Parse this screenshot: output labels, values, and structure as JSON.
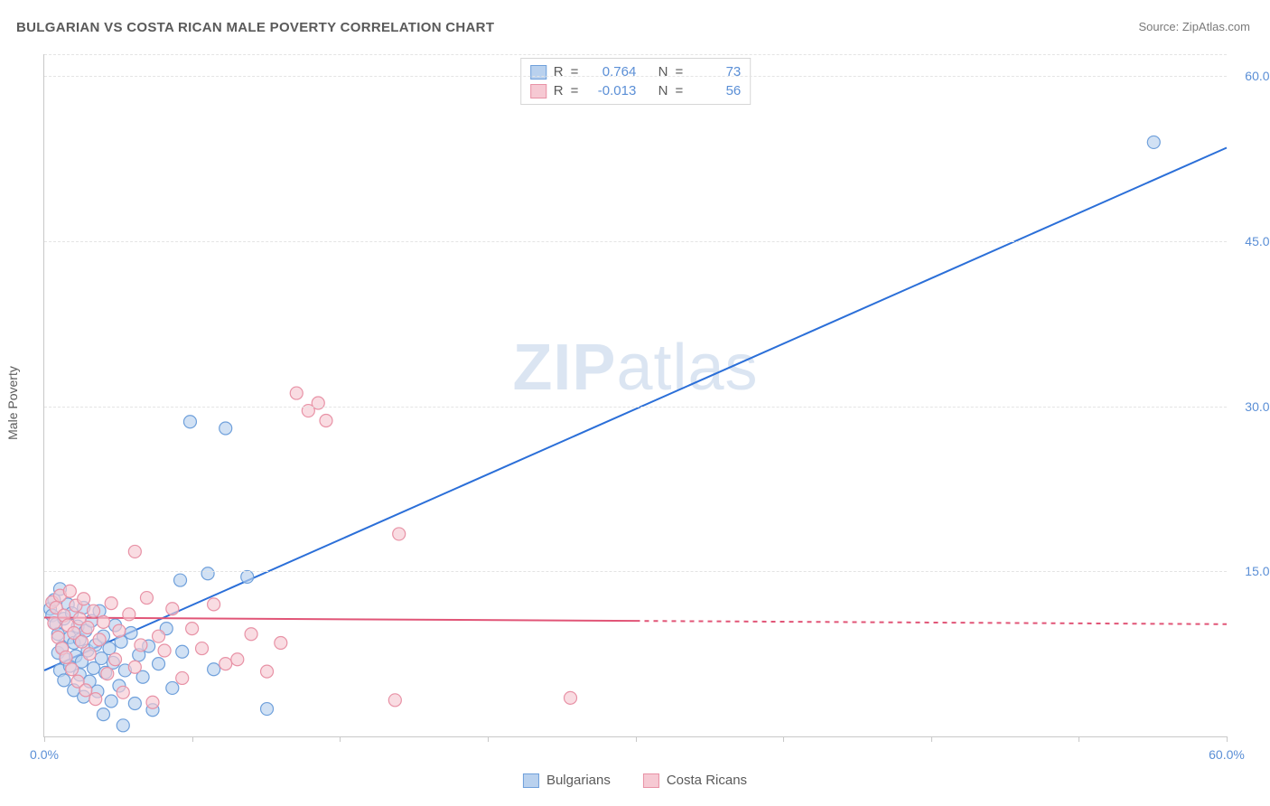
{
  "title": "BULGARIAN VS COSTA RICAN MALE POVERTY CORRELATION CHART",
  "source_label": "Source: ",
  "source_name": "ZipAtlas.com",
  "y_axis_title": "Male Poverty",
  "watermark_bold": "ZIP",
  "watermark_light": "atlas",
  "chart": {
    "type": "scatter",
    "xlim": [
      0,
      60
    ],
    "ylim": [
      0,
      62
    ],
    "x_ticks": [
      0,
      7.5,
      15,
      22.5,
      30,
      37.5,
      45,
      52.5,
      60
    ],
    "x_tick_labels": {
      "0": "0.0%",
      "60": "60.0%"
    },
    "y_grid": [
      15,
      30,
      45,
      60,
      62
    ],
    "y_tick_labels": {
      "15": "15.0%",
      "30": "30.0%",
      "45": "45.0%",
      "60": "60.0%"
    },
    "background_color": "#ffffff",
    "grid_color": "#e4e4e4",
    "axis_color": "#c8c8c8",
    "marker_radius": 7,
    "marker_stroke_width": 1.2,
    "line_width": 2
  },
  "series": [
    {
      "name": "Bulgarians",
      "color_fill": "#b9d1ee",
      "color_stroke": "#6fa0db",
      "line_color": "#2b6fd8",
      "R": "0.764",
      "N": "73",
      "trend": {
        "x1": 0,
        "y1": 6.0,
        "x2": 60,
        "y2": 53.5,
        "solid_to_x": 60
      },
      "points": [
        [
          0.3,
          11.6
        ],
        [
          0.4,
          11.0
        ],
        [
          0.5,
          12.4
        ],
        [
          0.6,
          10.2
        ],
        [
          0.7,
          9.3
        ],
        [
          0.7,
          7.6
        ],
        [
          0.8,
          13.4
        ],
        [
          0.8,
          6.0
        ],
        [
          0.9,
          8.1
        ],
        [
          1.0,
          10.7
        ],
        [
          1.0,
          5.1
        ],
        [
          1.1,
          7.0
        ],
        [
          1.2,
          12.0
        ],
        [
          1.3,
          9.0
        ],
        [
          1.3,
          6.4
        ],
        [
          1.4,
          11.2
        ],
        [
          1.5,
          8.5
        ],
        [
          1.5,
          4.2
        ],
        [
          1.6,
          7.3
        ],
        [
          1.7,
          10.0
        ],
        [
          1.8,
          5.6
        ],
        [
          1.8,
          8.8
        ],
        [
          1.9,
          6.8
        ],
        [
          2.0,
          11.7
        ],
        [
          2.0,
          3.6
        ],
        [
          2.1,
          9.6
        ],
        [
          2.2,
          7.8
        ],
        [
          2.3,
          5.0
        ],
        [
          2.4,
          10.5
        ],
        [
          2.5,
          6.2
        ],
        [
          2.6,
          8.3
        ],
        [
          2.7,
          4.1
        ],
        [
          2.8,
          11.4
        ],
        [
          2.9,
          7.1
        ],
        [
          3.0,
          9.1
        ],
        [
          3.0,
          2.0
        ],
        [
          3.1,
          5.8
        ],
        [
          3.3,
          8.0
        ],
        [
          3.4,
          3.2
        ],
        [
          3.5,
          6.7
        ],
        [
          3.6,
          10.1
        ],
        [
          3.8,
          4.6
        ],
        [
          3.9,
          8.6
        ],
        [
          4.0,
          1.0
        ],
        [
          4.1,
          6.0
        ],
        [
          4.4,
          9.4
        ],
        [
          4.6,
          3.0
        ],
        [
          4.8,
          7.4
        ],
        [
          5.0,
          5.4
        ],
        [
          5.3,
          8.2
        ],
        [
          5.5,
          2.4
        ],
        [
          5.8,
          6.6
        ],
        [
          6.2,
          9.8
        ],
        [
          6.5,
          4.4
        ],
        [
          6.9,
          14.2
        ],
        [
          7.0,
          7.7
        ],
        [
          7.4,
          28.6
        ],
        [
          8.3,
          14.8
        ],
        [
          8.6,
          6.1
        ],
        [
          9.2,
          28.0
        ],
        [
          10.3,
          14.5
        ],
        [
          11.3,
          2.5
        ],
        [
          56.3,
          54.0
        ]
      ]
    },
    {
      "name": "Costa Ricans",
      "color_fill": "#f6c9d3",
      "color_stroke": "#e892a6",
      "line_color": "#e15577",
      "R": "-0.013",
      "N": "56",
      "trend": {
        "x1": 0,
        "y1": 10.8,
        "x2": 60,
        "y2": 10.2,
        "solid_to_x": 30
      },
      "points": [
        [
          0.4,
          12.2
        ],
        [
          0.5,
          10.3
        ],
        [
          0.6,
          11.7
        ],
        [
          0.7,
          9.0
        ],
        [
          0.8,
          12.8
        ],
        [
          0.9,
          8.0
        ],
        [
          1.0,
          11.0
        ],
        [
          1.1,
          7.2
        ],
        [
          1.2,
          10.1
        ],
        [
          1.3,
          13.2
        ],
        [
          1.4,
          6.1
        ],
        [
          1.5,
          9.4
        ],
        [
          1.6,
          11.9
        ],
        [
          1.7,
          5.0
        ],
        [
          1.8,
          10.7
        ],
        [
          1.9,
          8.6
        ],
        [
          2.0,
          12.5
        ],
        [
          2.1,
          4.2
        ],
        [
          2.2,
          9.9
        ],
        [
          2.3,
          7.5
        ],
        [
          2.5,
          11.4
        ],
        [
          2.6,
          3.4
        ],
        [
          2.8,
          8.8
        ],
        [
          3.0,
          10.4
        ],
        [
          3.2,
          5.7
        ],
        [
          3.4,
          12.1
        ],
        [
          3.6,
          7.0
        ],
        [
          3.8,
          9.6
        ],
        [
          4.0,
          4.0
        ],
        [
          4.3,
          11.1
        ],
        [
          4.6,
          6.3
        ],
        [
          4.6,
          16.8
        ],
        [
          4.9,
          8.3
        ],
        [
          5.2,
          12.6
        ],
        [
          5.5,
          3.1
        ],
        [
          5.8,
          9.1
        ],
        [
          6.1,
          7.8
        ],
        [
          6.5,
          11.6
        ],
        [
          7.0,
          5.3
        ],
        [
          7.5,
          9.8
        ],
        [
          8.0,
          8.0
        ],
        [
          8.6,
          12.0
        ],
        [
          9.2,
          6.6
        ],
        [
          9.8,
          7.0
        ],
        [
          10.5,
          9.3
        ],
        [
          11.3,
          5.9
        ],
        [
          12.0,
          8.5
        ],
        [
          12.8,
          31.2
        ],
        [
          13.4,
          29.6
        ],
        [
          13.9,
          30.3
        ],
        [
          14.3,
          28.7
        ],
        [
          18.0,
          18.4
        ],
        [
          17.8,
          3.3
        ],
        [
          26.7,
          3.5
        ]
      ]
    }
  ],
  "r_legend": {
    "R_label": "R",
    "N_label": "N",
    "eq": "="
  },
  "bottom_legend_labels": [
    "Bulgarians",
    "Costa Ricans"
  ]
}
